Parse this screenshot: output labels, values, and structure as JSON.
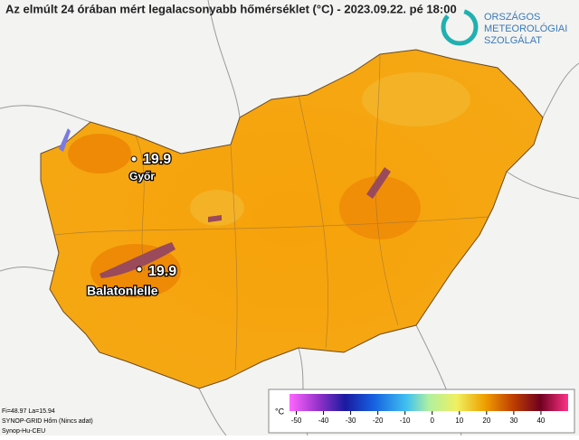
{
  "header": {
    "title": "Az elmúlt 24 órában mért legalacsonyabb hőmérséklet (°C) - 2023.09.22. pé 18:00"
  },
  "logo": {
    "lines": [
      "ORSZÁGOS",
      "METEOROLÓGIAI",
      "SZOLGÁLAT"
    ]
  },
  "stations": [
    {
      "value": "19.9",
      "name": "Győr"
    },
    {
      "value": "19.9",
      "name": "Balatonlelle"
    }
  ],
  "info": [
    "Fi=48.97 La=15.94",
    "SYNOP-GRID Hőm   (Nincs adat)",
    "Synop-Hu-CEU"
  ],
  "colorbar": {
    "unit": "°C",
    "lim": [
      -52.5,
      50
    ],
    "ticks": [
      -50,
      -40,
      -30,
      -20,
      -10,
      0,
      10,
      20,
      30,
      40
    ]
  }
}
